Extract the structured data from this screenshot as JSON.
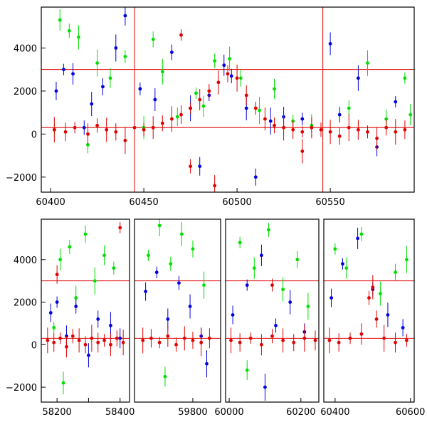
{
  "chart_data": [
    {
      "type": "scatter",
      "title": "",
      "xlabel": "",
      "ylabel": "",
      "xlim": [
        60395,
        60595
      ],
      "ylim": [
        -2700,
        5900
      ],
      "xticks": [
        60400,
        60450,
        60500,
        60550
      ],
      "xtick_labels": [
        "60400",
        "60450",
        "60500",
        "60550"
      ],
      "yticks": [
        -2000,
        0,
        2000,
        4000
      ],
      "ytick_labels": [
        "−2000",
        "0",
        "2000",
        "4000"
      ],
      "grid": false,
      "legend": "none",
      "reference_lines": {
        "horizontal": [
          3000,
          300
        ],
        "vertical": [
          60445,
          60546
        ],
        "color": "#e00000"
      },
      "series": [
        {
          "color": "#00e000",
          "description": "green points",
          "points": [
            [
              60402,
              200
            ],
            [
              60405,
              5300
            ],
            [
              60410,
              4800
            ],
            [
              60415,
              4500
            ],
            [
              60420,
              -500
            ],
            [
              60425,
              3300
            ],
            [
              60432,
              2600
            ],
            [
              60440,
              3600
            ],
            [
              60450,
              300
            ],
            [
              60455,
              4400
            ],
            [
              60460,
              2900
            ],
            [
              60468,
              800
            ],
            [
              60478,
              1900
            ],
            [
              60482,
              1300
            ],
            [
              60488,
              3400
            ],
            [
              60496,
              3500
            ],
            [
              60502,
              2600
            ],
            [
              60512,
              1100
            ],
            [
              60520,
              2100
            ],
            [
              60530,
              600
            ],
            [
              60540,
              400
            ],
            [
              60560,
              1200
            ],
            [
              60570,
              3300
            ],
            [
              60580,
              700
            ],
            [
              60590,
              2600
            ],
            [
              60593,
              900
            ]
          ]
        },
        {
          "color": "#0000e0",
          "description": "blue points",
          "points": [
            [
              60403,
              2000
            ],
            [
              60407,
              3000
            ],
            [
              60412,
              2800
            ],
            [
              60418,
              300
            ],
            [
              60422,
              1400
            ],
            [
              60428,
              2200
            ],
            [
              60435,
              4000
            ],
            [
              60440,
              5500
            ],
            [
              60448,
              2100
            ],
            [
              60456,
              1600
            ],
            [
              60465,
              3800
            ],
            [
              60475,
              1200
            ],
            [
              60480,
              -1500
            ],
            [
              60485,
              1800
            ],
            [
              60493,
              3200
            ],
            [
              60497,
              2700
            ],
            [
              60505,
              1200
            ],
            [
              60510,
              -2000
            ],
            [
              60518,
              600
            ],
            [
              60525,
              800
            ],
            [
              60535,
              700
            ],
            [
              60550,
              4200
            ],
            [
              60555,
              900
            ],
            [
              60565,
              2600
            ],
            [
              60575,
              -600
            ],
            [
              60585,
              1500
            ]
          ]
        },
        {
          "color": "#e00000",
          "description": "red points",
          "points": [
            [
              60402,
              200
            ],
            [
              60408,
              100
            ],
            [
              60413,
              300
            ],
            [
              60420,
              0
            ],
            [
              60425,
              400
            ],
            [
              60430,
              200
            ],
            [
              60435,
              100
            ],
            [
              60440,
              -300
            ],
            [
              60445,
              300
            ],
            [
              60450,
              200
            ],
            [
              60455,
              300
            ],
            [
              60460,
              500
            ],
            [
              60465,
              700
            ],
            [
              60470,
              900
            ],
            [
              60475,
              1200
            ],
            [
              60480,
              1600
            ],
            [
              60485,
              2000
            ],
            [
              60490,
              2400
            ],
            [
              60495,
              2800
            ],
            [
              60500,
              2600
            ],
            [
              60505,
              1800
            ],
            [
              60510,
              1200
            ],
            [
              60515,
              700
            ],
            [
              60520,
              400
            ],
            [
              60525,
              300
            ],
            [
              60530,
              200
            ],
            [
              60535,
              100
            ],
            [
              60540,
              300
            ],
            [
              60545,
              200
            ],
            [
              60550,
              100
            ],
            [
              60555,
              -100
            ],
            [
              60560,
              300
            ],
            [
              60565,
              200
            ],
            [
              60570,
              100
            ],
            [
              60575,
              -200
            ],
            [
              60580,
              300
            ],
            [
              60585,
              100
            ],
            [
              60590,
              200
            ],
            [
              60470,
              4600
            ],
            [
              60488,
              -2400
            ],
            [
              60475,
              -1500
            ],
            [
              60535,
              -800
            ]
          ]
        }
      ]
    },
    {
      "type": "scatter",
      "title": "",
      "xlabel": "",
      "ylabel": "",
      "broken_x_axis": true,
      "ylim": [
        -2700,
        5900
      ],
      "yticks": [
        -2000,
        0,
        2000,
        4000
      ],
      "ytick_labels": [
        "−2000",
        "0",
        "2000",
        "4000"
      ],
      "grid": false,
      "legend": "none",
      "reference_lines": {
        "horizontal": [
          3000,
          300
        ],
        "color": "#e00000"
      },
      "segments": [
        {
          "xlim": [
            58150,
            58430
          ],
          "xticks": [
            58200,
            58300,
            58400
          ],
          "xtick_labels": [
            "58200",
            "",
            "58400"
          ],
          "series": [
            {
              "color": "#00e000",
              "points": [
                [
                  58190,
                  800
                ],
                [
                  58210,
                  4000
                ],
                [
                  58240,
                  4600
                ],
                [
                  58260,
                  2200
                ],
                [
                  58290,
                  5200
                ],
                [
                  58320,
                  3000
                ],
                [
                  58350,
                  4200
                ],
                [
                  58380,
                  3600
                ],
                [
                  58220,
                  -1800
                ]
              ]
            },
            {
              "color": "#0000e0",
              "points": [
                [
                  58180,
                  1500
                ],
                [
                  58200,
                  2000
                ],
                [
                  58230,
                  400
                ],
                [
                  58260,
                  1800
                ],
                [
                  58300,
                  -500
                ],
                [
                  58330,
                  1200
                ],
                [
                  58370,
                  900
                ],
                [
                  58400,
                  300
                ]
              ]
            },
            {
              "color": "#e00000",
              "points": [
                [
                  58170,
                  200
                ],
                [
                  58190,
                  100
                ],
                [
                  58210,
                  300
                ],
                [
                  58230,
                  -100
                ],
                [
                  58250,
                  400
                ],
                [
                  58270,
                  200
                ],
                [
                  58290,
                  0
                ],
                [
                  58310,
                  300
                ],
                [
                  58330,
                  100
                ],
                [
                  58350,
                  200
                ],
                [
                  58370,
                  0
                ],
                [
                  58390,
                  300
                ],
                [
                  58410,
                  100
                ],
                [
                  58200,
                  3300
                ],
                [
                  58400,
                  5500
                ]
              ]
            }
          ]
        },
        {
          "xlim": [
            59590,
            59900
          ],
          "xticks": [
            59800
          ],
          "xtick_labels": [
            "59800"
          ],
          "series": [
            {
              "color": "#00e000",
              "points": [
                [
                  59640,
                  4200
                ],
                [
                  59680,
                  5600
                ],
                [
                  59720,
                  3800
                ],
                [
                  59760,
                  5200
                ],
                [
                  59800,
                  4500
                ],
                [
                  59840,
                  2800
                ],
                [
                  59700,
                  -1500
                ]
              ]
            },
            {
              "color": "#0000e0",
              "points": [
                [
                  59630,
                  2500
                ],
                [
                  59670,
                  3400
                ],
                [
                  59710,
                  1200
                ],
                [
                  59750,
                  2900
                ],
                [
                  59790,
                  1800
                ],
                [
                  59830,
                  400
                ],
                [
                  59850,
                  -900
                ]
              ]
            },
            {
              "color": "#e00000",
              "points": [
                [
                  59620,
                  200
                ],
                [
                  59650,
                  300
                ],
                [
                  59680,
                  100
                ],
                [
                  59710,
                  400
                ],
                [
                  59740,
                  0
                ],
                [
                  59770,
                  300
                ],
                [
                  59800,
                  200
                ],
                [
                  59830,
                  100
                ],
                [
                  59860,
                  300
                ]
              ]
            }
          ]
        },
        {
          "xlim": [
            59990,
            60250
          ],
          "xticks": [
            60000,
            60200
          ],
          "xtick_labels": [
            "60000",
            "60200"
          ],
          "series": [
            {
              "color": "#00e000",
              "points": [
                [
                  60030,
                  4800
                ],
                [
                  60070,
                  3600
                ],
                [
                  60110,
                  5400
                ],
                [
                  60150,
                  2600
                ],
                [
                  60190,
                  4000
                ],
                [
                  60220,
                  1800
                ],
                [
                  60050,
                  -1200
                ]
              ]
            },
            {
              "color": "#0000e0",
              "points": [
                [
                  60010,
                  1400
                ],
                [
                  60050,
                  2800
                ],
                [
                  60090,
                  4200
                ],
                [
                  60130,
                  900
                ],
                [
                  60170,
                  2000
                ],
                [
                  60210,
                  600
                ],
                [
                  60100,
                  -2000
                ]
              ]
            },
            {
              "color": "#e00000",
              "points": [
                [
                  60005,
                  200
                ],
                [
                  60030,
                  100
                ],
                [
                  60060,
                  300
                ],
                [
                  60090,
                  0
                ],
                [
                  60120,
                  400
                ],
                [
                  60150,
                  200
                ],
                [
                  60180,
                  100
                ],
                [
                  60210,
                  300
                ],
                [
                  60240,
                  200
                ],
                [
                  60120,
                  2800
                ]
              ]
            }
          ]
        },
        {
          "xlim": [
            60370,
            60610
          ],
          "xticks": [
            60400,
            60600
          ],
          "xtick_labels": [
            "60400",
            "60600"
          ],
          "series": [
            {
              "color": "#00e000",
              "points": [
                [
                  60400,
                  4500
                ],
                [
                  60430,
                  3600
                ],
                [
                  60470,
                  5200
                ],
                [
                  60520,
                  2400
                ],
                [
                  60560,
                  3400
                ],
                [
                  60590,
                  4000
                ]
              ]
            },
            {
              "color": "#0000e0",
              "points": [
                [
                  60390,
                  2200
                ],
                [
                  60420,
                  3800
                ],
                [
                  60460,
                  5000
                ],
                [
                  60500,
                  2600
                ],
                [
                  60540,
                  1400
                ],
                [
                  60580,
                  800
                ]
              ]
            },
            {
              "color": "#e00000",
              "points": [
                [
                  60385,
                  200
                ],
                [
                  60410,
                  100
                ],
                [
                  60440,
                  300
                ],
                [
                  60470,
                  500
                ],
                [
                  60490,
                  2200
                ],
                [
                  60500,
                  2700
                ],
                [
                  60510,
                  1200
                ],
                [
                  60530,
                  300
                ],
                [
                  60560,
                  100
                ],
                [
                  60590,
                  200
                ]
              ]
            }
          ]
        }
      ]
    }
  ]
}
